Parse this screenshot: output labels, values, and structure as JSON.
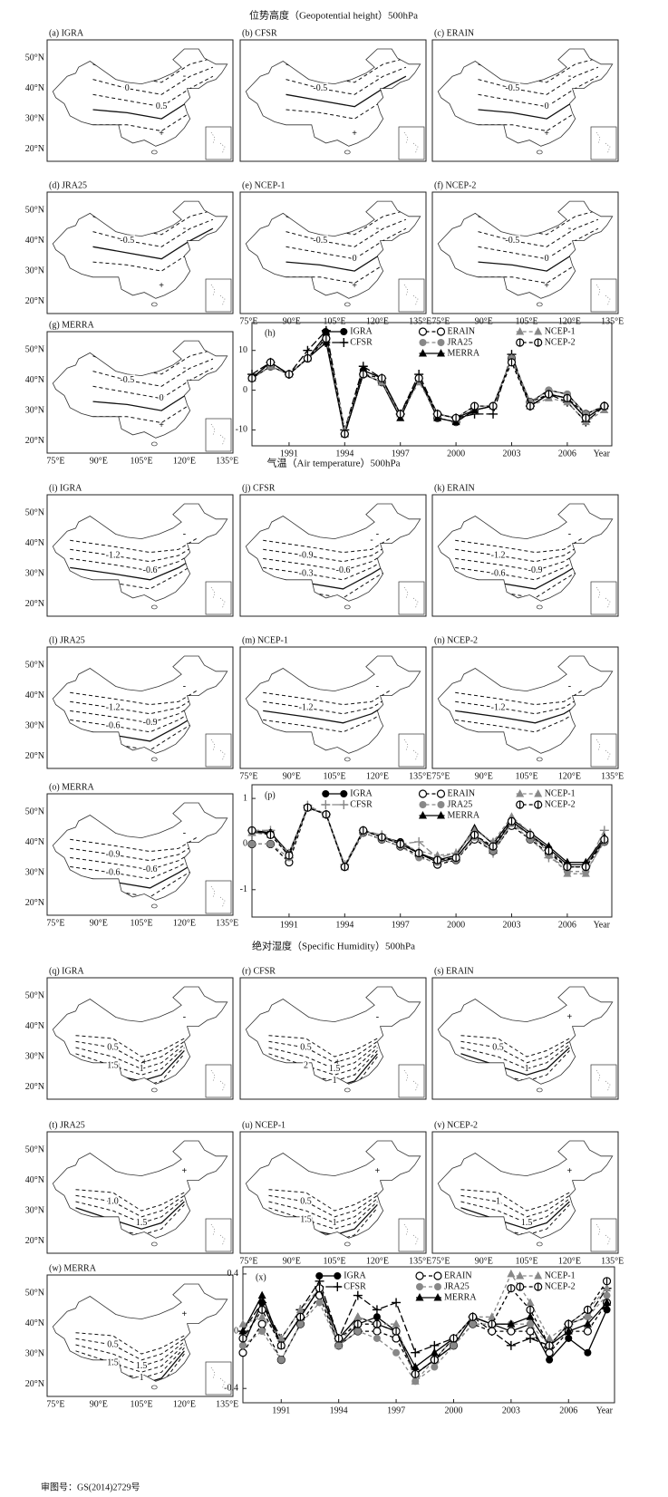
{
  "sections": [
    {
      "title": "位势高度（Geopotential height）500hPa",
      "panels": [
        {
          "label": "(a) IGRA",
          "contour_labels": [
            "0",
            "0.5"
          ],
          "signs": [
            "-",
            "+"
          ]
        },
        {
          "label": "(b) CFSR",
          "contour_labels": [
            "-0.5"
          ],
          "signs": [
            "-",
            "+"
          ]
        },
        {
          "label": "(c) ERAIN",
          "contour_labels": [
            "-0.5",
            "0"
          ],
          "signs": [
            "-",
            "+"
          ]
        },
        {
          "label": "(d) JRA25",
          "contour_labels": [
            "-0.5"
          ],
          "signs": [
            "-",
            "+"
          ]
        },
        {
          "label": "(e) NCEP-1",
          "contour_labels": [
            "-0.5",
            "0"
          ],
          "signs": [
            "-",
            "+"
          ]
        },
        {
          "label": "(f) NCEP-2",
          "contour_labels": [
            "-0.5",
            "0"
          ],
          "signs": [
            "-",
            "+"
          ]
        },
        {
          "label": "(g) MERRA",
          "contour_labels": [
            "-0.5",
            "0"
          ],
          "signs": [
            "-",
            "+"
          ]
        }
      ]
    },
    {
      "title": "气温（Air temperature）500hPa",
      "panels": [
        {
          "label": "(i) IGRA",
          "contour_labels": [
            "-1.2",
            "-0.6"
          ],
          "signs": [
            "-"
          ]
        },
        {
          "label": "(j) CFSR",
          "contour_labels": [
            "-0.9",
            "-0.6",
            "-0.3"
          ],
          "signs": [
            "-",
            "-"
          ]
        },
        {
          "label": "(k) ERAIN",
          "contour_labels": [
            "-1.2",
            "-0.9",
            "-0.6"
          ],
          "signs": [
            "-"
          ]
        },
        {
          "label": "(l) JRA25",
          "contour_labels": [
            "-1.2",
            "-0.9",
            "-0.6"
          ],
          "signs": [
            "-"
          ]
        },
        {
          "label": "(m) NCEP-1",
          "contour_labels": [
            "-1.2"
          ],
          "signs": [
            "-"
          ]
        },
        {
          "label": "(n) NCEP-2",
          "contour_labels": [
            "-1.2"
          ],
          "signs": [
            "-"
          ]
        },
        {
          "label": "(o) MERRA",
          "contour_labels": [
            "-0.9",
            "-0.6",
            "-0.6"
          ],
          "signs": [
            "-"
          ]
        }
      ]
    },
    {
      "title": "绝对湿度（Specific Humidity）500hPa",
      "panels": [
        {
          "label": "(q) IGRA",
          "contour_labels": [
            "0.5",
            "1",
            "1.5"
          ],
          "signs": [
            "-",
            "+"
          ]
        },
        {
          "label": "(r) CFSR",
          "contour_labels": [
            "0.5",
            "1.5",
            "2",
            "1"
          ],
          "signs": [
            "-",
            "+",
            "-"
          ]
        },
        {
          "label": "(s) ERAIN",
          "contour_labels": [
            "0.5",
            "1"
          ],
          "signs": [
            "+"
          ]
        },
        {
          "label": "(t) JRA25",
          "contour_labels": [
            "1.0",
            "1.5"
          ],
          "signs": [
            "+"
          ]
        },
        {
          "label": "(u) NCEP-1",
          "contour_labels": [
            "0.5",
            "1",
            "1.5"
          ],
          "signs": [
            "+"
          ]
        },
        {
          "label": "(v) NCEP-2",
          "contour_labels": [
            "1",
            "1.5"
          ],
          "signs": [
            "+"
          ]
        },
        {
          "label": "(w) MERRA",
          "contour_labels": [
            "0.5",
            "1.5",
            "1.5",
            "1"
          ],
          "signs": [
            "+"
          ]
        }
      ]
    }
  ],
  "lat_ticks": [
    "50°N",
    "40°N",
    "30°N",
    "20°N"
  ],
  "lon_ticks": [
    "75°E",
    "90°E",
    "105°E",
    "120°E",
    "135°E"
  ],
  "footer": "审图号：GS(2014)2729号",
  "chart_data": [
    {
      "type": "line",
      "title": "(h)",
      "x_label": "Year",
      "x": [
        1989,
        1990,
        1991,
        1992,
        1993,
        1994,
        1995,
        1996,
        1997,
        1998,
        1999,
        2000,
        2001,
        2002,
        2003,
        2004,
        2005,
        2006,
        2007,
        2008
      ],
      "xlim": [
        1989,
        2008.4
      ],
      "xticks": [
        1991,
        1994,
        1997,
        2000,
        2003,
        2006
      ],
      "ylim": [
        -14,
        17
      ],
      "yticks": [
        -10,
        0,
        10
      ],
      "series": [
        {
          "name": "IGRA",
          "color": "#000000",
          "marker": "filled-circle",
          "dash": "solid",
          "values": [
            3,
            7,
            4,
            8,
            14,
            -11,
            5,
            3,
            -6,
            3,
            -6,
            -7,
            -5,
            -4,
            8,
            -3,
            0,
            -1,
            -6,
            -4
          ]
        },
        {
          "name": "CFSR",
          "color": "#000000",
          "marker": "plus",
          "dash": "long",
          "values": [
            4,
            7,
            4,
            10,
            15,
            -10,
            6,
            3,
            -6,
            4,
            -6,
            -7,
            -6,
            -6,
            9,
            -4,
            -1,
            -3,
            -8,
            -4
          ]
        },
        {
          "name": "ERAIN",
          "color": "#000000",
          "marker": "open-circle",
          "dash": "dashed",
          "values": [
            3,
            6,
            4,
            8,
            13,
            -11,
            4,
            2,
            -6,
            3,
            -7,
            -8,
            -5,
            -4,
            8,
            -3,
            -1,
            -2,
            -6,
            -4
          ]
        },
        {
          "name": "JRA25",
          "color": "#888888",
          "marker": "filled-circle",
          "dash": "dashed",
          "values": [
            3,
            6,
            4,
            8,
            13,
            -11,
            4,
            2,
            -6,
            3,
            -7,
            -8,
            -5,
            -4,
            8,
            -3,
            0,
            -1,
            -6,
            -4
          ]
        },
        {
          "name": "MERRA",
          "color": "#000000",
          "marker": "triangle",
          "dash": "solid",
          "values": [
            3,
            6,
            4,
            8,
            12,
            -11,
            4,
            2,
            -7,
            3,
            -7,
            -8,
            -5,
            -4,
            8,
            -4,
            -1,
            -2,
            -7,
            -4
          ]
        },
        {
          "name": "NCEP-1",
          "color": "#888888",
          "marker": "triangle",
          "dash": "dashed",
          "values": [
            3,
            6,
            4,
            8,
            13,
            -10,
            4,
            2,
            -6,
            2,
            -6,
            -7,
            -4,
            -4,
            8,
            -4,
            -2,
            -3,
            -8,
            -5
          ]
        },
        {
          "name": "NCEP-2",
          "color": "#000000",
          "marker": "half-circle",
          "dash": "dashed",
          "values": [
            3,
            7,
            4,
            8,
            13,
            -11,
            4,
            3,
            -6,
            3,
            -6,
            -7,
            -4,
            -4,
            7,
            -4,
            -1,
            -2,
            -7,
            -4
          ]
        }
      ]
    },
    {
      "type": "line",
      "title": "(p)",
      "x_label": "Year",
      "x": [
        1989,
        1990,
        1991,
        1992,
        1993,
        1994,
        1995,
        1996,
        1997,
        1998,
        1999,
        2000,
        2001,
        2002,
        2003,
        2004,
        2005,
        2006,
        2007,
        2008
      ],
      "xlim": [
        1989,
        2008.4
      ],
      "xticks": [
        1991,
        1994,
        1997,
        2000,
        2003,
        2006
      ],
      "ylim": [
        -1.6,
        1.3
      ],
      "yticks": [
        -1,
        0,
        1
      ],
      "series": [
        {
          "name": "IGRA",
          "color": "#000000",
          "marker": "filled-circle",
          "dash": "solid",
          "values": [
            0.3,
            0.25,
            -0.2,
            0.8,
            0.65,
            -0.5,
            0.3,
            0.15,
            0.05,
            -0.2,
            -0.4,
            -0.3,
            0.2,
            -0.1,
            0.5,
            0.2,
            -0.1,
            -0.45,
            -0.45,
            0.1
          ]
        },
        {
          "name": "CFSR",
          "color": "#888888",
          "marker": "plus",
          "dash": "long",
          "values": [
            0.3,
            0.3,
            -0.3,
            0.85,
            0.65,
            -0.45,
            0.3,
            0.2,
            0.0,
            0.05,
            -0.3,
            -0.2,
            0.25,
            -0.2,
            0.45,
            0.2,
            -0.3,
            -0.5,
            -0.5,
            0.3
          ]
        },
        {
          "name": "ERAIN",
          "color": "#000000",
          "marker": "open-circle",
          "dash": "dashed",
          "values": [
            0.0,
            0.0,
            -0.4,
            0.8,
            0.65,
            -0.5,
            0.25,
            0.1,
            -0.05,
            -0.25,
            -0.45,
            -0.35,
            0.1,
            -0.15,
            0.4,
            0.1,
            -0.2,
            -0.5,
            -0.5,
            0.05
          ]
        },
        {
          "name": "JRA25",
          "color": "#888888",
          "marker": "filled-circle",
          "dash": "dashed",
          "values": [
            0.0,
            0.0,
            -0.3,
            0.8,
            0.65,
            -0.5,
            0.25,
            0.1,
            -0.05,
            -0.3,
            -0.4,
            -0.35,
            0.15,
            -0.15,
            0.45,
            0.1,
            -0.25,
            -0.6,
            -0.6,
            0.05
          ]
        },
        {
          "name": "MERRA",
          "color": "#000000",
          "marker": "triangle",
          "dash": "solid",
          "values": [
            0.25,
            0.25,
            -0.2,
            0.8,
            0.65,
            -0.5,
            0.3,
            0.15,
            0.0,
            -0.2,
            -0.35,
            -0.25,
            0.35,
            0.0,
            0.55,
            0.25,
            -0.05,
            -0.4,
            -0.4,
            0.15
          ]
        },
        {
          "name": "NCEP-1",
          "color": "#888888",
          "marker": "triangle",
          "dash": "dashed",
          "values": [
            0.25,
            0.2,
            -0.2,
            0.8,
            0.65,
            -0.5,
            0.3,
            0.15,
            0.0,
            -0.15,
            -0.25,
            -0.2,
            0.3,
            0.05,
            0.6,
            0.25,
            -0.2,
            -0.65,
            -0.65,
            0.1
          ]
        },
        {
          "name": "NCEP-2",
          "color": "#000000",
          "marker": "half-circle",
          "dash": "dashed",
          "values": [
            0.3,
            0.2,
            -0.25,
            0.8,
            0.65,
            -0.5,
            0.3,
            0.15,
            0.0,
            -0.2,
            -0.35,
            -0.3,
            0.2,
            -0.05,
            0.5,
            0.2,
            -0.15,
            -0.5,
            -0.5,
            0.1
          ]
        }
      ]
    },
    {
      "type": "line",
      "title": "(x)",
      "x_label": "Year",
      "x": [
        1989,
        1990,
        1991,
        1992,
        1993,
        1994,
        1995,
        1996,
        1997,
        1998,
        1999,
        2000,
        2001,
        2002,
        2003,
        2004,
        2005,
        2006,
        2007,
        2008
      ],
      "xlim": [
        1989,
        2008.4
      ],
      "xticks": [
        1991,
        1994,
        1997,
        2000,
        2003,
        2006
      ],
      "ylim": [
        -0.5,
        0.45
      ],
      "yticks": [
        -0.4,
        0,
        0.4
      ],
      "series": [
        {
          "name": "IGRA",
          "color": "#000000",
          "marker": "filled-circle",
          "dash": "solid",
          "values": [
            -0.1,
            0.2,
            -0.1,
            0.1,
            0.3,
            -0.1,
            0.05,
            0.1,
            0.0,
            -0.3,
            -0.2,
            -0.1,
            0.1,
            0.05,
            0.0,
            0.05,
            -0.2,
            -0.05,
            -0.15,
            0.15
          ]
        },
        {
          "name": "CFSR",
          "color": "#000000",
          "marker": "plus",
          "dash": "long",
          "values": [
            0.0,
            0.2,
            -0.05,
            0.15,
            0.35,
            -0.05,
            0.25,
            0.15,
            0.2,
            -0.15,
            -0.1,
            -0.05,
            0.1,
            0.0,
            -0.1,
            -0.05,
            -0.1,
            0.05,
            0.1,
            0.3
          ]
        },
        {
          "name": "ERAIN",
          "color": "#000000",
          "marker": "open-circle",
          "dash": "dashed",
          "values": [
            -0.15,
            0.05,
            -0.2,
            0.05,
            0.25,
            -0.1,
            0.0,
            0.0,
            -0.05,
            -0.3,
            -0.2,
            -0.1,
            0.05,
            0.0,
            0.0,
            0.0,
            -0.15,
            0.0,
            0.0,
            0.2
          ]
        },
        {
          "name": "JRA25",
          "color": "#888888",
          "marker": "filled-circle",
          "dash": "dashed",
          "values": [
            -0.1,
            0.0,
            -0.2,
            0.05,
            0.2,
            -0.1,
            0.0,
            -0.05,
            -0.15,
            -0.35,
            -0.25,
            -0.1,
            0.05,
            0.05,
            0.05,
            0.05,
            -0.1,
            0.05,
            0.1,
            0.25
          ]
        },
        {
          "name": "MERRA",
          "color": "#000000",
          "marker": "triangle",
          "dash": "solid",
          "values": [
            0.0,
            0.25,
            -0.1,
            0.1,
            0.3,
            -0.05,
            0.1,
            0.05,
            0.0,
            -0.25,
            -0.15,
            -0.05,
            0.1,
            0.05,
            0.05,
            0.1,
            -0.1,
            0.0,
            0.05,
            0.2
          ]
        },
        {
          "name": "NCEP-1",
          "color": "#888888",
          "marker": "triangle",
          "dash": "dashed",
          "values": [
            0.05,
            0.1,
            -0.05,
            0.15,
            0.3,
            -0.1,
            0.1,
            0.05,
            0.05,
            -0.35,
            -0.2,
            -0.05,
            0.1,
            0.1,
            0.4,
            0.2,
            -0.05,
            0.05,
            0.15,
            0.3
          ]
        },
        {
          "name": "NCEP-2",
          "color": "#000000",
          "marker": "half-circle",
          "dash": "dashed",
          "values": [
            -0.05,
            0.15,
            -0.1,
            0.1,
            0.3,
            -0.05,
            0.05,
            0.05,
            0.0,
            -0.3,
            -0.2,
            -0.05,
            0.1,
            0.05,
            0.3,
            0.15,
            -0.1,
            0.05,
            0.15,
            0.35
          ]
        }
      ]
    }
  ]
}
